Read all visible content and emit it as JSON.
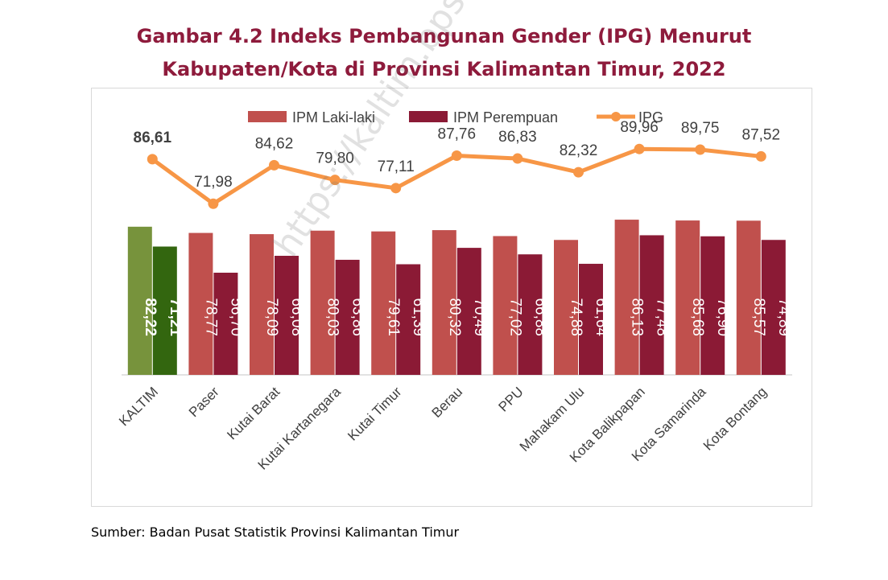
{
  "title": {
    "line1": "Gambar 4.2 Indeks Pembangunan Gender (IPG) Menurut",
    "line2": "Kabupaten/Kota di Provinsi Kalimantan Timur, 2022"
  },
  "source": "Sumber: Badan Pusat Statistik Provinsi Kalimantan Timur",
  "watermark": "https://kaltim.bps.go.id",
  "colors": {
    "title": "#8e1b3c",
    "male": "#c0504d",
    "female": "#8b1a35",
    "ipg": "#f79646",
    "kaltim_male": "#77933c",
    "kaltim_female": "#33660f"
  },
  "chart_data": {
    "type": "bar",
    "categories": [
      "KALTIM",
      "Paser",
      "Kutai Barat",
      "Kutai Kartanegara",
      "Kutai Timur",
      "Berau",
      "PPU",
      "Mahakam Ulu",
      "Kota Balikpapan",
      "Kota Samarinda",
      "Kota Bontang"
    ],
    "series": [
      {
        "name": "IPM Laki-laki",
        "type": "bar",
        "values": [
          82.22,
          78.77,
          78.09,
          80.03,
          79.61,
          80.32,
          77.02,
          74.88,
          86.13,
          85.68,
          85.57
        ],
        "labels": [
          "82,22",
          "78,77",
          "78,09",
          "80,03",
          "79,61",
          "80,32",
          "77,02",
          "74,88",
          "86,13",
          "85,68",
          "85,57"
        ]
      },
      {
        "name": "IPM Perempuan",
        "type": "bar",
        "values": [
          71.21,
          56.7,
          66.08,
          63.86,
          61.39,
          70.49,
          66.88,
          61.64,
          77.48,
          76.9,
          74.89
        ],
        "labels": [
          "71,21",
          "56,70",
          "66,08",
          "63,86",
          "61,39",
          "70,49",
          "66,88",
          "61,64",
          "77,48",
          "76,90",
          "74,89"
        ]
      },
      {
        "name": "IPG",
        "type": "line",
        "values": [
          86.61,
          71.98,
          84.62,
          79.8,
          77.11,
          87.76,
          86.83,
          82.32,
          89.96,
          89.75,
          87.52
        ],
        "labels": [
          "86,61",
          "71,98",
          "84,62",
          "79,80",
          "77,11",
          "87,76",
          "86,83",
          "82,32",
          "89,96",
          "89,75",
          "87,52"
        ]
      }
    ],
    "legend_position": "top",
    "grid": false
  }
}
